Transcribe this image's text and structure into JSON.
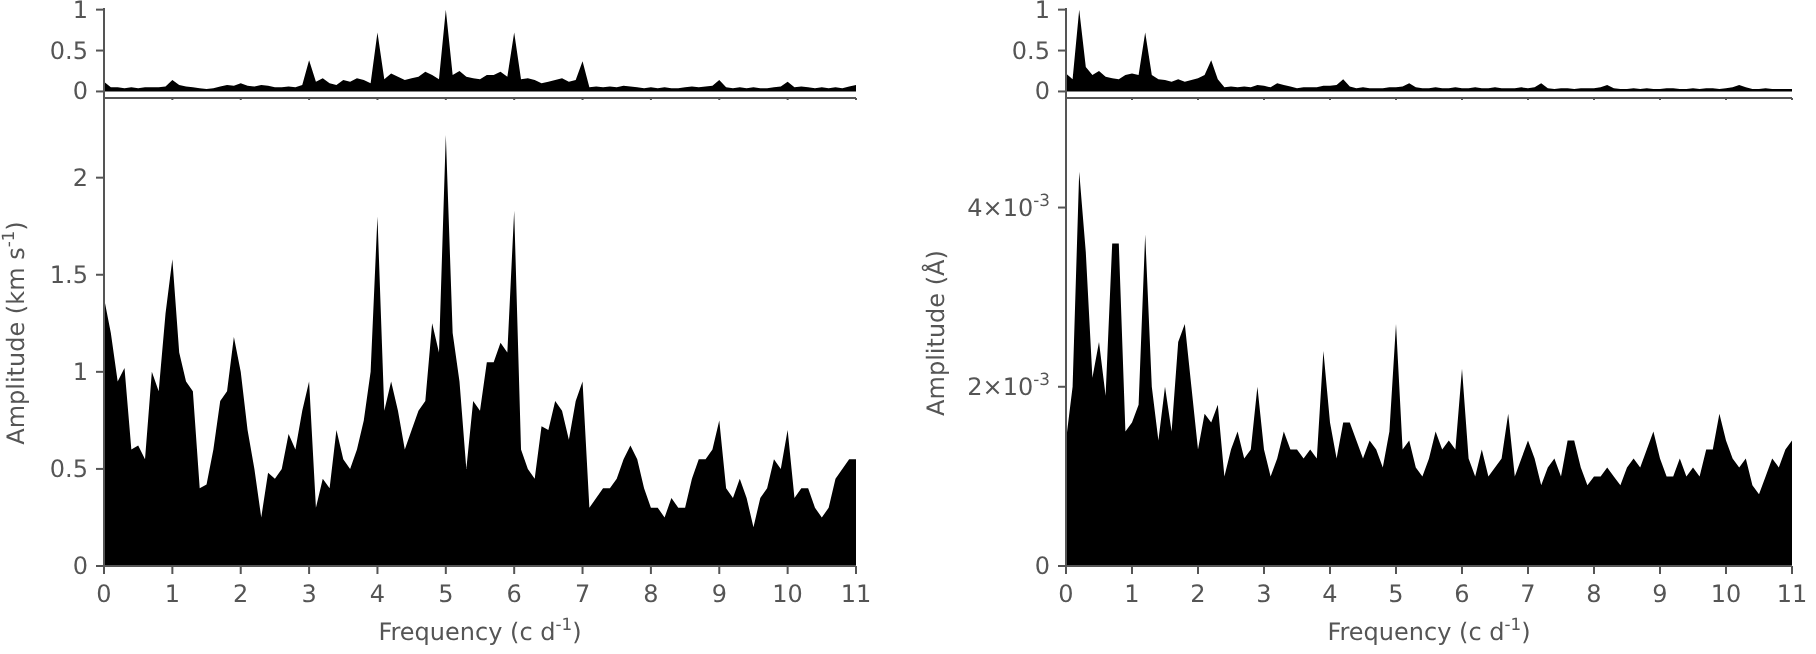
{
  "chart_data": [
    {
      "type": "area",
      "x": [
        0,
        0.1,
        0.2,
        0.3,
        0.4,
        0.5,
        0.6,
        0.7,
        0.8,
        0.9,
        1,
        1.1,
        1.2,
        1.3,
        1.4,
        1.5,
        1.6,
        1.7,
        1.8,
        1.9,
        2,
        2.1,
        2.2,
        2.3,
        2.4,
        2.5,
        2.6,
        2.7,
        2.8,
        2.9,
        3,
        3.1,
        3.2,
        3.3,
        3.4,
        3.5,
        3.6,
        3.7,
        3.8,
        3.9,
        4,
        4.1,
        4.2,
        4.3,
        4.4,
        4.5,
        4.6,
        4.7,
        4.8,
        4.9,
        5,
        5.1,
        5.2,
        5.3,
        5.4,
        5.5,
        5.6,
        5.7,
        5.8,
        5.9,
        6,
        6.1,
        6.2,
        6.3,
        6.4,
        6.5,
        6.6,
        6.7,
        6.8,
        6.9,
        7,
        7.1,
        7.2,
        7.3,
        7.4,
        7.5,
        7.6,
        7.7,
        7.8,
        7.9,
        8,
        8.1,
        8.2,
        8.3,
        8.4,
        8.5,
        8.6,
        8.7,
        8.8,
        8.9,
        9,
        9.1,
        9.2,
        9.3,
        9.4,
        9.5,
        9.6,
        9.7,
        9.8,
        9.9,
        10,
        10.1,
        10.2,
        10.3,
        10.4,
        10.5,
        10.6,
        10.7,
        10.8,
        10.9,
        11
      ],
      "series": [
        {
          "color": "#000000",
          "values": [
            0.12,
            0.05,
            0.05,
            0.04,
            0.05,
            0.04,
            0.05,
            0.05,
            0.05,
            0.06,
            0.14,
            0.08,
            0.06,
            0.05,
            0.04,
            0.03,
            0.04,
            0.06,
            0.08,
            0.07,
            0.1,
            0.07,
            0.06,
            0.08,
            0.07,
            0.05,
            0.05,
            0.06,
            0.05,
            0.08,
            0.38,
            0.12,
            0.16,
            0.1,
            0.08,
            0.14,
            0.12,
            0.16,
            0.14,
            0.1,
            0.72,
            0.15,
            0.22,
            0.18,
            0.14,
            0.16,
            0.18,
            0.24,
            0.2,
            0.15,
            1.0,
            0.2,
            0.25,
            0.18,
            0.16,
            0.15,
            0.2,
            0.2,
            0.24,
            0.18,
            0.72,
            0.15,
            0.16,
            0.14,
            0.1,
            0.12,
            0.14,
            0.16,
            0.12,
            0.14,
            0.37,
            0.05,
            0.06,
            0.05,
            0.06,
            0.05,
            0.07,
            0.06,
            0.05,
            0.04,
            0.05,
            0.04,
            0.05,
            0.04,
            0.04,
            0.05,
            0.06,
            0.05,
            0.06,
            0.07,
            0.14,
            0.05,
            0.04,
            0.05,
            0.04,
            0.05,
            0.04,
            0.04,
            0.05,
            0.06,
            0.12,
            0.05,
            0.06,
            0.05,
            0.04,
            0.05,
            0.04,
            0.05,
            0.04,
            0.06,
            0.08
          ]
        }
      ],
      "xlim": [
        0,
        11
      ],
      "xticks": [
        0,
        1,
        2,
        3,
        4,
        5,
        6,
        7,
        8,
        9,
        10,
        11
      ],
      "ylim": [
        -0.08,
        1.02
      ],
      "yticks": [
        0,
        0.5,
        1
      ],
      "tick_labels": "y"
    },
    {
      "type": "area",
      "xlabel": "Frequency (c d$^{-1}$)",
      "ylabel": "Amplitude (km s$^{-1}$)",
      "x": [
        0,
        0.1,
        0.2,
        0.3,
        0.4,
        0.5,
        0.6,
        0.7,
        0.8,
        0.9,
        1,
        1.1,
        1.2,
        1.3,
        1.4,
        1.5,
        1.6,
        1.7,
        1.8,
        1.9,
        2,
        2.1,
        2.2,
        2.3,
        2.4,
        2.5,
        2.6,
        2.7,
        2.8,
        2.9,
        3,
        3.1,
        3.2,
        3.3,
        3.4,
        3.5,
        3.6,
        3.7,
        3.8,
        3.9,
        4,
        4.1,
        4.2,
        4.3,
        4.4,
        4.5,
        4.6,
        4.7,
        4.8,
        4.9,
        5,
        5.1,
        5.2,
        5.3,
        5.4,
        5.5,
        5.6,
        5.7,
        5.8,
        5.9,
        6,
        6.1,
        6.2,
        6.3,
        6.4,
        6.5,
        6.6,
        6.7,
        6.8,
        6.9,
        7,
        7.1,
        7.2,
        7.3,
        7.4,
        7.5,
        7.6,
        7.7,
        7.8,
        7.9,
        8,
        8.1,
        8.2,
        8.3,
        8.4,
        8.5,
        8.6,
        8.7,
        8.8,
        8.9,
        9,
        9.1,
        9.2,
        9.3,
        9.4,
        9.5,
        9.6,
        9.7,
        9.8,
        9.9,
        10,
        10.1,
        10.2,
        10.3,
        10.4,
        10.5,
        10.6,
        10.7,
        10.8,
        10.9,
        11
      ],
      "series": [
        {
          "color": "#000000",
          "values": [
            1.38,
            1.2,
            0.95,
            1.02,
            0.6,
            0.62,
            0.55,
            1.0,
            0.9,
            1.3,
            1.58,
            1.1,
            0.95,
            0.9,
            0.4,
            0.42,
            0.6,
            0.85,
            0.9,
            1.18,
            1.0,
            0.7,
            0.5,
            0.25,
            0.48,
            0.45,
            0.5,
            0.68,
            0.6,
            0.8,
            0.95,
            0.3,
            0.45,
            0.4,
            0.7,
            0.55,
            0.5,
            0.6,
            0.75,
            1.0,
            1.8,
            0.8,
            0.95,
            0.8,
            0.6,
            0.7,
            0.8,
            0.85,
            1.25,
            1.1,
            2.22,
            1.2,
            0.95,
            0.5,
            0.85,
            0.8,
            1.05,
            1.05,
            1.15,
            1.1,
            1.83,
            0.6,
            0.5,
            0.45,
            0.72,
            0.7,
            0.85,
            0.8,
            0.65,
            0.85,
            0.95,
            0.3,
            0.35,
            0.4,
            0.4,
            0.45,
            0.55,
            0.62,
            0.55,
            0.4,
            0.3,
            0.3,
            0.25,
            0.35,
            0.3,
            0.3,
            0.45,
            0.55,
            0.55,
            0.6,
            0.75,
            0.4,
            0.35,
            0.45,
            0.35,
            0.2,
            0.35,
            0.4,
            0.55,
            0.5,
            0.7,
            0.35,
            0.4,
            0.4,
            0.3,
            0.25,
            0.3,
            0.45,
            0.5,
            0.55,
            0.55
          ]
        }
      ],
      "xlim": [
        0,
        11
      ],
      "xticks": [
        0,
        1,
        2,
        3,
        4,
        5,
        6,
        7,
        8,
        9,
        10,
        11
      ],
      "ylim": [
        0,
        2.4
      ],
      "yticks": [
        0,
        0.5,
        1,
        1.5,
        2
      ]
    },
    {
      "type": "area",
      "x": [
        0,
        0.1,
        0.2,
        0.3,
        0.4,
        0.5,
        0.6,
        0.7,
        0.8,
        0.9,
        1,
        1.1,
        1.2,
        1.3,
        1.4,
        1.5,
        1.6,
        1.7,
        1.8,
        1.9,
        2,
        2.1,
        2.2,
        2.3,
        2.4,
        2.5,
        2.6,
        2.7,
        2.8,
        2.9,
        3,
        3.1,
        3.2,
        3.3,
        3.4,
        3.5,
        3.6,
        3.7,
        3.8,
        3.9,
        4,
        4.1,
        4.2,
        4.3,
        4.4,
        4.5,
        4.6,
        4.7,
        4.8,
        4.9,
        5,
        5.1,
        5.2,
        5.3,
        5.4,
        5.5,
        5.6,
        5.7,
        5.8,
        5.9,
        6,
        6.1,
        6.2,
        6.3,
        6.4,
        6.5,
        6.6,
        6.7,
        6.8,
        6.9,
        7,
        7.1,
        7.2,
        7.3,
        7.4,
        7.5,
        7.6,
        7.7,
        7.8,
        7.9,
        8,
        8.1,
        8.2,
        8.3,
        8.4,
        8.5,
        8.6,
        8.7,
        8.8,
        8.9,
        9,
        9.1,
        9.2,
        9.3,
        9.4,
        9.5,
        9.6,
        9.7,
        9.8,
        9.9,
        10,
        10.1,
        10.2,
        10.3,
        10.4,
        10.5,
        10.6,
        10.7,
        10.8,
        10.9,
        11
      ],
      "series": [
        {
          "color": "#000000",
          "values": [
            0.22,
            0.15,
            1.0,
            0.3,
            0.2,
            0.25,
            0.18,
            0.16,
            0.15,
            0.2,
            0.22,
            0.2,
            0.72,
            0.2,
            0.15,
            0.14,
            0.12,
            0.15,
            0.12,
            0.14,
            0.16,
            0.2,
            0.38,
            0.15,
            0.05,
            0.06,
            0.05,
            0.06,
            0.05,
            0.08,
            0.07,
            0.05,
            0.1,
            0.08,
            0.06,
            0.04,
            0.05,
            0.05,
            0.05,
            0.07,
            0.07,
            0.08,
            0.15,
            0.06,
            0.04,
            0.05,
            0.04,
            0.04,
            0.04,
            0.05,
            0.05,
            0.06,
            0.1,
            0.05,
            0.04,
            0.04,
            0.05,
            0.04,
            0.04,
            0.05,
            0.04,
            0.04,
            0.05,
            0.04,
            0.04,
            0.05,
            0.04,
            0.04,
            0.04,
            0.05,
            0.04,
            0.05,
            0.1,
            0.04,
            0.03,
            0.04,
            0.04,
            0.03,
            0.04,
            0.04,
            0.04,
            0.05,
            0.08,
            0.04,
            0.03,
            0.03,
            0.04,
            0.03,
            0.04,
            0.03,
            0.03,
            0.04,
            0.04,
            0.03,
            0.03,
            0.04,
            0.03,
            0.04,
            0.04,
            0.03,
            0.04,
            0.05,
            0.08,
            0.05,
            0.03,
            0.03,
            0.04,
            0.03,
            0.03,
            0.03,
            0.03
          ]
        }
      ],
      "xlim": [
        0,
        11
      ],
      "xticks": [
        0,
        1,
        2,
        3,
        4,
        5,
        6,
        7,
        8,
        9,
        10,
        11
      ],
      "ylim": [
        -0.08,
        1.02
      ],
      "yticks": [
        0,
        0.5,
        1
      ],
      "tick_labels": "y"
    },
    {
      "type": "area",
      "xlabel": "Frequency (c d$^{-1}$)",
      "ylabel": "Amplitude (Å)",
      "x": [
        0,
        0.1,
        0.2,
        0.3,
        0.4,
        0.5,
        0.6,
        0.7,
        0.8,
        0.9,
        1,
        1.1,
        1.2,
        1.3,
        1.4,
        1.5,
        1.6,
        1.7,
        1.8,
        1.9,
        2,
        2.1,
        2.2,
        2.3,
        2.4,
        2.5,
        2.6,
        2.7,
        2.8,
        2.9,
        3,
        3.1,
        3.2,
        3.3,
        3.4,
        3.5,
        3.6,
        3.7,
        3.8,
        3.9,
        4,
        4.1,
        4.2,
        4.3,
        4.4,
        4.5,
        4.6,
        4.7,
        4.8,
        4.9,
        5,
        5.1,
        5.2,
        5.3,
        5.4,
        5.5,
        5.6,
        5.7,
        5.8,
        5.9,
        6,
        6.1,
        6.2,
        6.3,
        6.4,
        6.5,
        6.6,
        6.7,
        6.8,
        6.9,
        7,
        7.1,
        7.2,
        7.3,
        7.4,
        7.5,
        7.6,
        7.7,
        7.8,
        7.9,
        8,
        8.1,
        8.2,
        8.3,
        8.4,
        8.5,
        8.6,
        8.7,
        8.8,
        8.9,
        9,
        9.1,
        9.2,
        9.3,
        9.4,
        9.5,
        9.6,
        9.7,
        9.8,
        9.9,
        10,
        10.1,
        10.2,
        10.3,
        10.4,
        10.5,
        10.6,
        10.7,
        10.8,
        10.9,
        11
      ],
      "series": [
        {
          "color": "#000000",
          "values": [
            0.0014,
            0.002,
            0.0044,
            0.0035,
            0.0021,
            0.0025,
            0.0019,
            0.0036,
            0.0036,
            0.0015,
            0.0016,
            0.0018,
            0.0037,
            0.002,
            0.0014,
            0.002,
            0.0015,
            0.0025,
            0.0027,
            0.002,
            0.0013,
            0.0017,
            0.0016,
            0.0018,
            0.001,
            0.0013,
            0.0015,
            0.0012,
            0.0013,
            0.002,
            0.0013,
            0.001,
            0.0012,
            0.0015,
            0.0013,
            0.0013,
            0.0012,
            0.0013,
            0.0012,
            0.0024,
            0.0016,
            0.0012,
            0.0016,
            0.0016,
            0.0014,
            0.0012,
            0.0014,
            0.0013,
            0.0011,
            0.0015,
            0.0027,
            0.0013,
            0.0014,
            0.0011,
            0.001,
            0.0012,
            0.0015,
            0.0013,
            0.0014,
            0.0013,
            0.0022,
            0.0012,
            0.001,
            0.0013,
            0.001,
            0.0011,
            0.0012,
            0.0017,
            0.001,
            0.0012,
            0.0014,
            0.0012,
            0.0009,
            0.0011,
            0.0012,
            0.001,
            0.0014,
            0.0014,
            0.0011,
            0.0009,
            0.001,
            0.001,
            0.0011,
            0.001,
            0.0009,
            0.0011,
            0.0012,
            0.0011,
            0.0013,
            0.0015,
            0.0012,
            0.001,
            0.001,
            0.0012,
            0.001,
            0.0011,
            0.001,
            0.0013,
            0.0013,
            0.0017,
            0.0014,
            0.0012,
            0.0011,
            0.0012,
            0.0009,
            0.0008,
            0.001,
            0.0012,
            0.0011,
            0.0013,
            0.0014
          ]
        }
      ],
      "xlim": [
        0,
        11
      ],
      "xticks": [
        0,
        1,
        2,
        3,
        4,
        5,
        6,
        7,
        8,
        9,
        10,
        11
      ],
      "ylim": [
        0,
        0.0052
      ],
      "yticks": [
        0,
        {
          "value": 0.002,
          "label": "2×10$^{-3}$"
        },
        {
          "value": 0.004,
          "label": "4×10$^{-3}$"
        }
      ]
    }
  ]
}
